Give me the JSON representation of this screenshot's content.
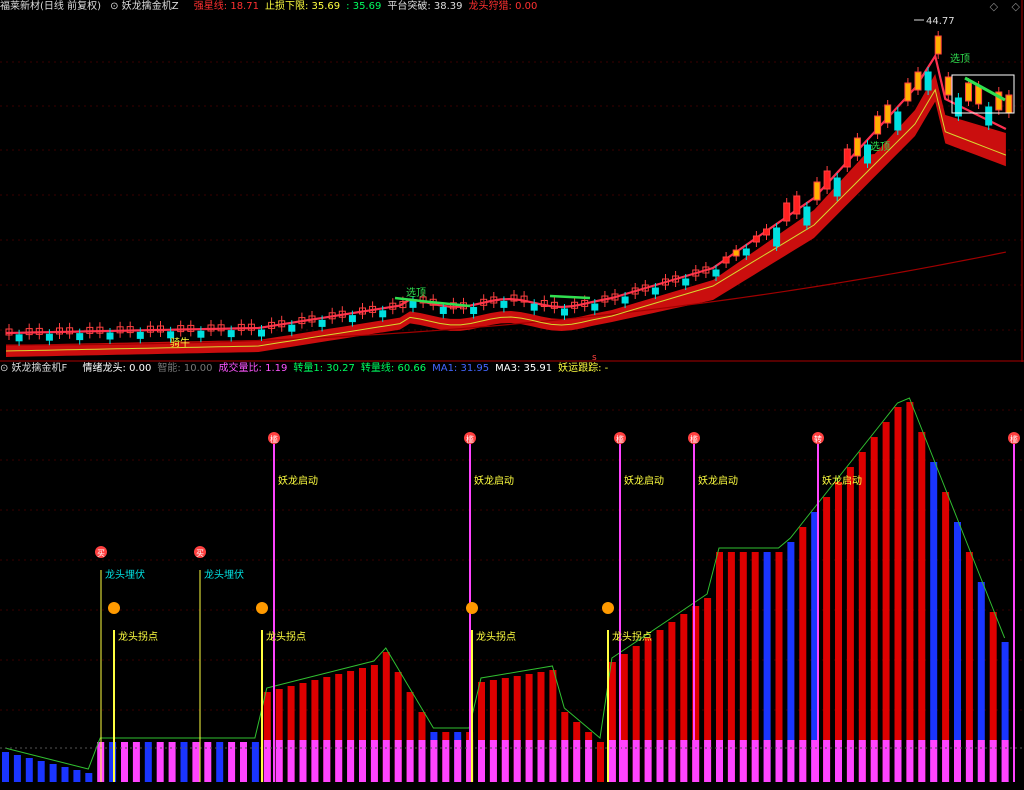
{
  "top_header": {
    "title": "福莱新材(日线 前复权)",
    "indicator": "妖龙擒金机Z",
    "items": [
      {
        "label": "强星线",
        "value": "18.71",
        "color": "#ff3030"
      },
      {
        "label": "止损下限",
        "value": "35.69",
        "color": "#ffff40"
      },
      {
        "label": "",
        "value": "35.69",
        "color": "#00ff60"
      },
      {
        "label": "平台突破",
        "value": "38.39",
        "color": "#dddddd"
      },
      {
        "label": "龙头狩猎",
        "value": "0.00",
        "color": "#ff3030"
      }
    ]
  },
  "bottom_header": {
    "indicator": "妖龙擒金机F",
    "items": [
      {
        "label": "情绪龙头",
        "value": "0.00",
        "color": "#ffffff"
      },
      {
        "label": "智能",
        "value": "10.00",
        "color": "#777777"
      },
      {
        "label": "成交量比",
        "value": "1.19",
        "color": "#ff55ff"
      },
      {
        "label": "转量1",
        "value": "30.27",
        "color": "#00ff60"
      },
      {
        "label": "转量线",
        "value": "60.66",
        "color": "#00ff60"
      },
      {
        "label": "MA1",
        "value": "31.95",
        "color": "#4466ff"
      },
      {
        "label": "MA3",
        "value": "35.91",
        "color": "#ffffff"
      },
      {
        "label": "妖运跟踪",
        "value": "-",
        "color": "#ffff40"
      }
    ]
  },
  "corner_buttons": [
    "◇",
    "◇"
  ],
  "annotations": {
    "high_price": "44.77",
    "select_label": "选顶",
    "ride_label": "骑牛",
    "start_label": "妖龙启动",
    "bury_label": "龙头埋伏",
    "turn_label": "龙头拐点",
    "badge_qi": "槛",
    "badge_buy": "买",
    "badge_zhuan": "转",
    "bottom_marker": "s"
  },
  "colors": {
    "up": "#ff2020",
    "down": "#00e0e0",
    "red_bar": "#dd0000",
    "blue_bar": "#1a35ff",
    "pink": "#ff44ff",
    "yellow": "#ffff40",
    "green_line": "#30c030"
  }
}
